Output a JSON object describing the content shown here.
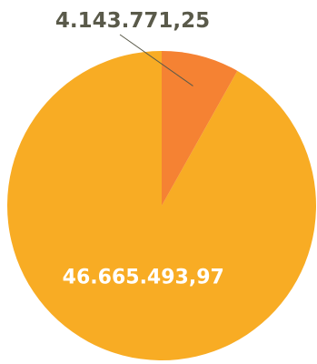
{
  "chart_data": {
    "type": "pie",
    "slices": [
      {
        "value": 46665493.97,
        "label": "46.665.493,97",
        "color": "#F8AC24",
        "label_color": "#FFFFFF"
      },
      {
        "value": 4143771.25,
        "label": "4.143.771,25",
        "color": "#F58233",
        "label_color": "#5A5A4A"
      }
    ],
    "start_angle_deg": 0,
    "direction": "counterclockwise",
    "leader_line_color": "#5A5A4A",
    "background": "#FFFFFF"
  }
}
